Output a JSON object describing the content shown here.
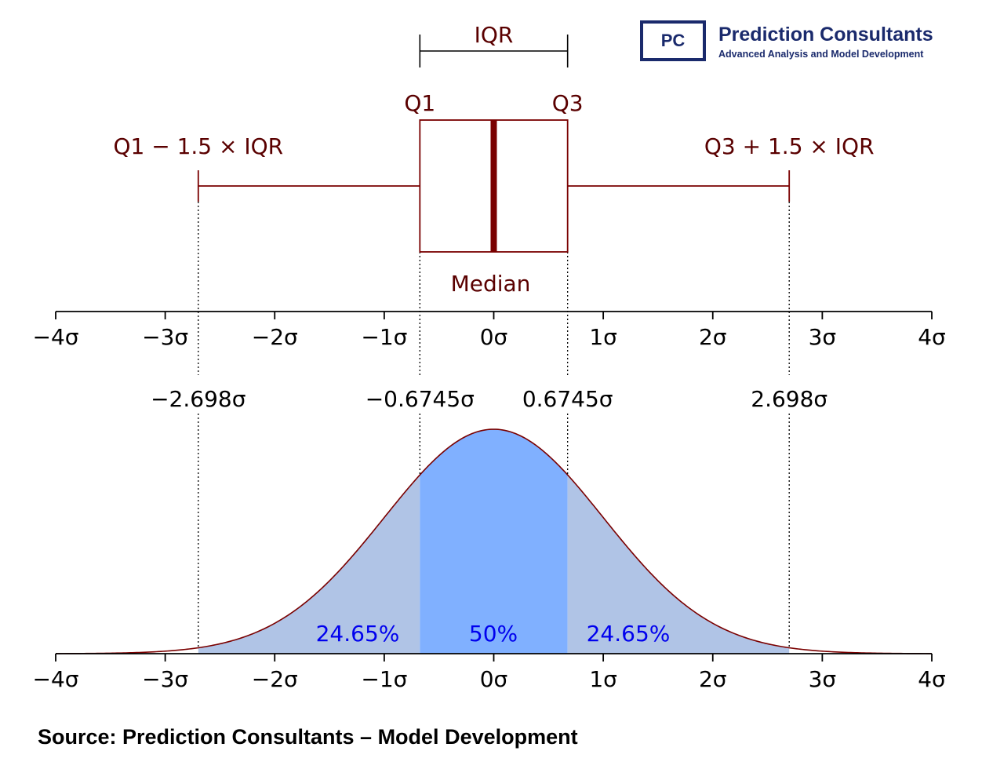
{
  "logo": {
    "mark": "PC",
    "name": "Prediction Consultants",
    "tagline": "Advanced Analysis and Model Development"
  },
  "colors": {
    "box": "#7a0000",
    "annotation_text": "#5a0000",
    "tail_fill": "#b0c4e6",
    "iqr_fill": "#80b0ff",
    "percent_text": "#0000ee",
    "brand": "#1a2a6c"
  },
  "boxplot": {
    "iqr_label": "IQR",
    "q1_label": "Q1",
    "q3_label": "Q3",
    "lower_fence_label": "Q1 − 1.5 × IQR",
    "upper_fence_label": "Q3 + 1.5 × IQR",
    "median_label": "Median",
    "q1": -0.6745,
    "median": 0,
    "q3": 0.6745,
    "lower_whisker": -2.698,
    "upper_whisker": 2.698
  },
  "axis": {
    "range": [
      -4,
      4
    ],
    "ticks": [
      -4,
      -3,
      -2,
      -1,
      0,
      1,
      2,
      3,
      4
    ],
    "tick_labels": [
      "−4σ",
      "−3σ",
      "−2σ",
      "−1σ",
      "0σ",
      "1σ",
      "2σ",
      "3σ",
      "4σ"
    ]
  },
  "markers": [
    {
      "value": -2.698,
      "label": "−2.698σ"
    },
    {
      "value": -0.6745,
      "label": "−0.6745σ"
    },
    {
      "value": 0.6745,
      "label": "0.6745σ"
    },
    {
      "value": 2.698,
      "label": "2.698σ"
    }
  ],
  "chart_data": {
    "type": "area",
    "curve": "standard normal density",
    "x_range": [
      -4,
      4
    ],
    "regions": [
      {
        "from": -2.698,
        "to": -0.6745,
        "percent_label": "24.65%"
      },
      {
        "from": -0.6745,
        "to": 0.6745,
        "percent_label": "50%"
      },
      {
        "from": 0.6745,
        "to": 2.698,
        "percent_label": "24.65%"
      }
    ]
  },
  "source": "Source: Prediction Consultants – Model Development"
}
